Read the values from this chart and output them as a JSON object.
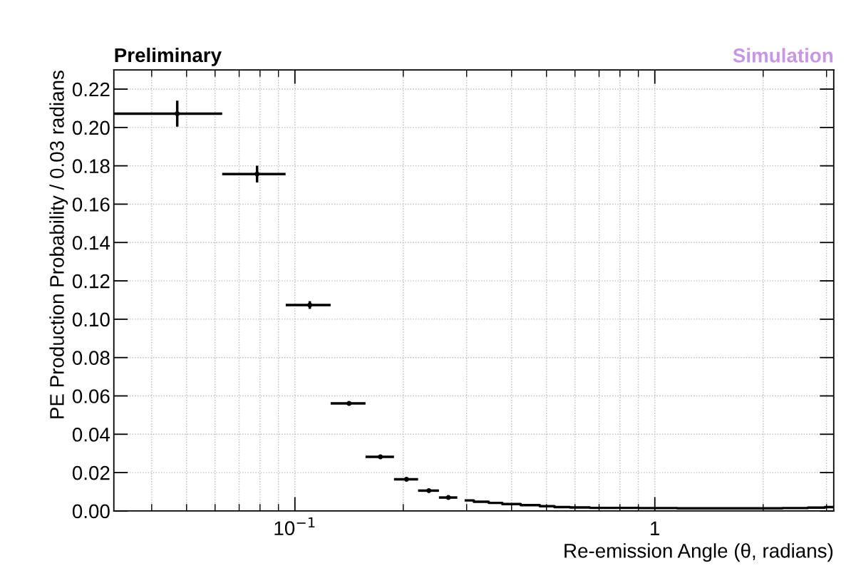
{
  "chart_data": {
    "type": "scatter",
    "title": "Preliminary",
    "xlabel": "Re-emission Angle (θ, radians)",
    "ylabel": "PE Production Probability / 0.03 radians",
    "annotations": [
      "Simulation"
    ],
    "log": "x",
    "grid": true,
    "xlim": [
      0.0314,
      3.1416
    ],
    "ylim": [
      0,
      0.23
    ],
    "xticks": [
      {
        "value": 0.04,
        "label": null
      },
      {
        "value": 0.05,
        "label": null
      },
      {
        "value": 0.06,
        "label": null
      },
      {
        "value": 0.07,
        "label": null
      },
      {
        "value": 0.08,
        "label": null
      },
      {
        "value": 0.09,
        "label": null
      },
      {
        "value": 0.1,
        "label": "10$^{−1}$"
      },
      {
        "value": 0.2,
        "label": null
      },
      {
        "value": 0.3,
        "label": null
      },
      {
        "value": 0.4,
        "label": null
      },
      {
        "value": 0.5,
        "label": null
      },
      {
        "value": 0.6,
        "label": null
      },
      {
        "value": 0.7,
        "label": null
      },
      {
        "value": 0.8,
        "label": null
      },
      {
        "value": 0.9,
        "label": null
      },
      1,
      {
        "value": 2,
        "label": null
      },
      {
        "value": 3,
        "label": null
      }
    ],
    "yticks": [
      {
        "value": 0.0,
        "label": "0.00"
      },
      0.02,
      0.04,
      0.06,
      0.08,
      {
        "value": 0.1,
        "label": "0.10"
      },
      0.12,
      0.14,
      0.16,
      0.18,
      {
        "value": 0.2,
        "label": "0.20"
      },
      0.22
    ],
    "series": [
      {
        "color": "#000000",
        "marker": "circle",
        "x": [
          0.0471,
          0.0785,
          0.11,
          0.1414,
          0.1728,
          0.2042,
          0.2356,
          0.267
        ],
        "values": [
          0.2072,
          0.1757,
          0.1074,
          0.0561,
          0.0282,
          0.0165,
          0.0106,
          0.007
        ],
        "errors": [
          0.0068,
          0.0044,
          0.002,
          0.001,
          0.0006,
          0.0004,
          0.0003,
          null
        ],
        "xerrors": [
          0.0157,
          0.0157,
          0.0157,
          0.0157,
          0.0157,
          0.0157,
          0.0157,
          0.0157
        ]
      },
      {
        "type": "step",
        "color": "#000000",
        "x": [
          0.2985,
          0.3299,
          0.3613,
          0.3927,
          0.4555,
          0.5027,
          0.5498,
          0.6126,
          0.7069,
          0.8011,
          1.0053,
          1.3038,
          1.602,
          2.0106,
          2.5133,
          2.8117,
          3.1259
        ],
        "values": [
          0.0055,
          0.0048,
          0.0042,
          0.0036,
          0.003,
          0.0025,
          0.002,
          0.0018,
          0.0016,
          0.0016,
          0.0015,
          0.0014,
          0.0014,
          0.0014,
          0.0015,
          0.0017,
          0.002
        ]
      }
    ]
  }
}
